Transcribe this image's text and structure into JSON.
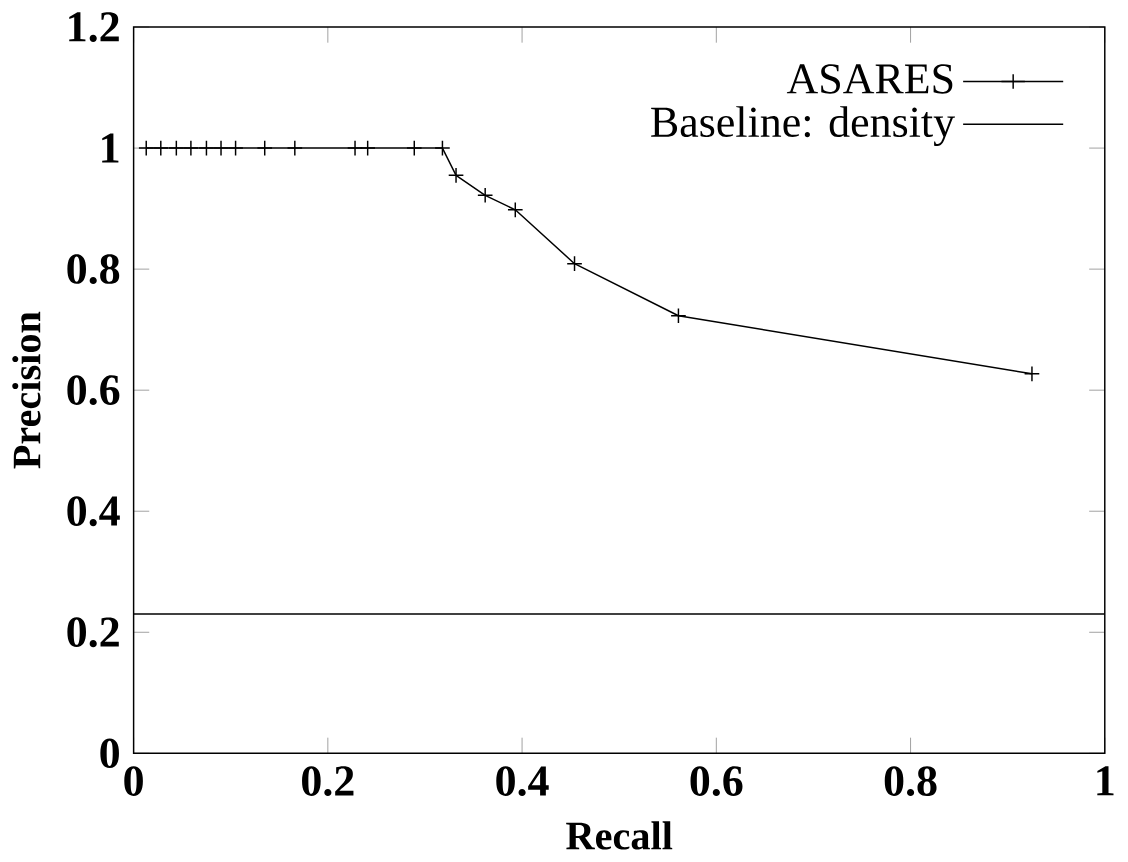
{
  "chart_data": {
    "type": "line",
    "xlabel": "Recall",
    "ylabel": "Precision",
    "xlim": [
      0,
      1
    ],
    "ylim": [
      0,
      1.2
    ],
    "xticks": [
      0,
      0.2,
      0.4,
      0.6,
      0.8,
      1
    ],
    "yticks": [
      0,
      0.2,
      0.4,
      0.6,
      0.8,
      1,
      1.2
    ],
    "legend": "top right",
    "grid": false,
    "series": [
      {
        "name": "ASARES",
        "color": "#000000",
        "marker": "cross",
        "x": [
          0.013,
          0.028,
          0.044,
          0.059,
          0.075,
          0.09,
          0.105,
          0.135,
          0.166,
          0.228,
          0.241,
          0.289,
          0.318,
          0.332,
          0.362,
          0.393,
          0.454,
          0.561,
          0.925
        ],
        "values": [
          1,
          1,
          1,
          1,
          1,
          1,
          1,
          1,
          1,
          1,
          1,
          1,
          1,
          0.955,
          0.922,
          0.898,
          0.809,
          0.723,
          0.627
        ]
      },
      {
        "name": "Baseline: density",
        "color": "#000000",
        "marker": "none",
        "x": [
          0,
          1
        ],
        "values": [
          0.23,
          0.23
        ]
      }
    ]
  }
}
